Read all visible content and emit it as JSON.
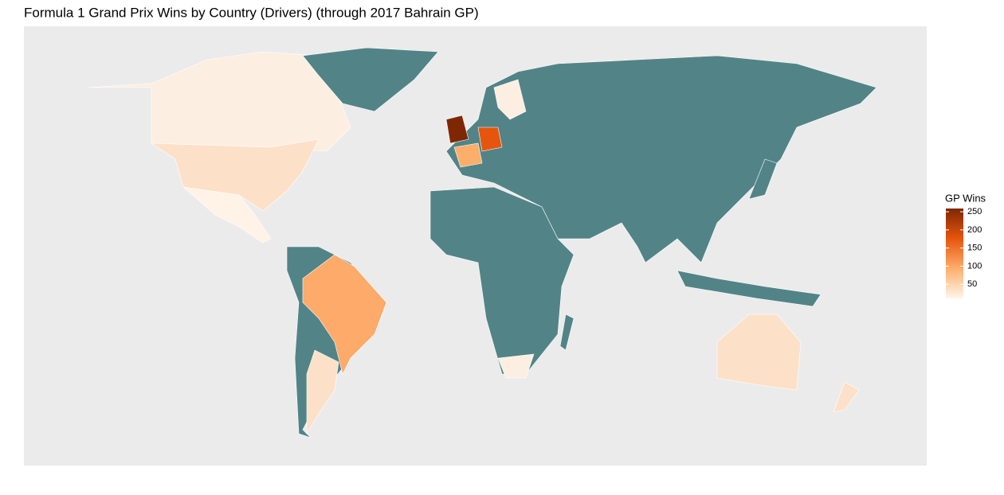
{
  "chart_data": {
    "type": "choropleth",
    "title": "Formula 1 Grand Prix Wins by Country (Drivers) (through 2017 Bahrain GP)",
    "legend_title": "GP Wins",
    "colorlim": [
      11,
      259
    ],
    "colors": [
      "#fff5eb",
      "#fdae6b",
      "#e6550d",
      "#7f2704"
    ],
    "ticks": [
      50,
      100,
      150,
      200,
      250
    ]
  }
}
